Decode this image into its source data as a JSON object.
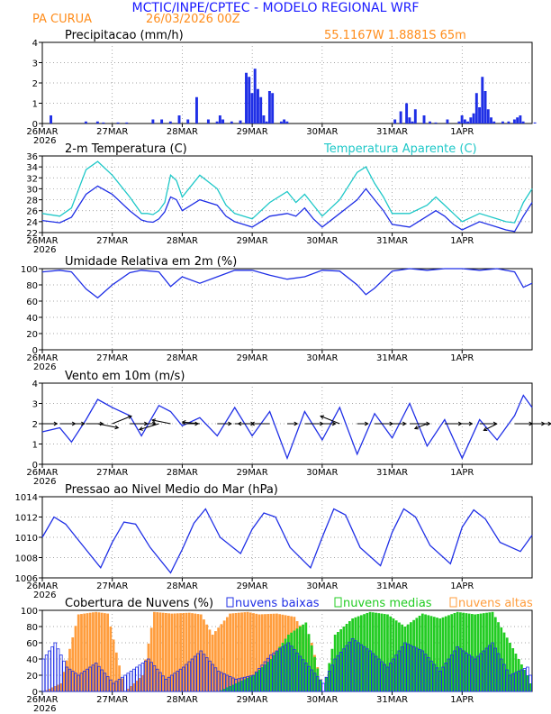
{
  "header": {
    "title": "MCTIC/INPE/CPTEC - MODELO REGIONAL WRF",
    "location": "PA CURUA",
    "run": "26/03/2026 00Z",
    "coords": "55.1167W 1.8881S 65m",
    "title_color": "#1a1aff",
    "sub_color": "#ff8c1a"
  },
  "days": [
    "26MAR",
    "27MAR",
    "28MAR",
    "29MAR",
    "30MAR",
    "31MAR",
    "1APR"
  ],
  "year_label": "2026",
  "colors": {
    "blue": "#1f2fe6",
    "cyan": "#1fc8c8",
    "green": "#22cc22",
    "orange": "#ff9d3d",
    "grid": "#888888"
  },
  "chart_data": [
    {
      "type": "bar",
      "id": "precip",
      "title": "Precipitacao (mm/h)",
      "ylim": [
        0,
        4
      ],
      "yticks": [
        "0",
        "1",
        "2",
        "3",
        "4"
      ],
      "x_hours": [
        3,
        15,
        19,
        21,
        26,
        29,
        38,
        41,
        44,
        47,
        50,
        53,
        57,
        60,
        61,
        62,
        65,
        68,
        70,
        71,
        72,
        73,
        74,
        75,
        76,
        77,
        78,
        79,
        82,
        83,
        84,
        121,
        123,
        125,
        126,
        127,
        128,
        131,
        133,
        135,
        139,
        143,
        144,
        145,
        146,
        147,
        148,
        149,
        150,
        151,
        152,
        153,
        154,
        155,
        158,
        160,
        162,
        163,
        164,
        165,
        169
      ],
      "values": [
        0.4,
        0.1,
        0.1,
        0.05,
        0.05,
        0.05,
        0.2,
        0.2,
        0.1,
        0.4,
        0.2,
        1.3,
        0.2,
        0.1,
        0.4,
        0.2,
        0.1,
        0.15,
        2.5,
        2.3,
        1.5,
        2.7,
        1.7,
        1.3,
        0.4,
        0.1,
        1.6,
        1.5,
        0.1,
        0.2,
        0.1,
        0.2,
        0.6,
        1.0,
        0.3,
        0.1,
        0.7,
        0.4,
        0.1,
        0.05,
        0.2,
        0.1,
        0.4,
        0.2,
        0.1,
        0.3,
        0.5,
        1.5,
        0.8,
        2.3,
        1.6,
        0.7,
        0.3,
        0.1,
        0.1,
        0.1,
        0.2,
        0.3,
        0.4,
        0.1,
        0.05
      ]
    },
    {
      "type": "line",
      "id": "temp",
      "title": "2-m Temperatura (C)",
      "legend": "Temperatura Aparente (C)",
      "ylim": [
        22,
        36
      ],
      "yticks": [
        "22",
        "24",
        "26",
        "28",
        "30",
        "32",
        "34",
        "36"
      ],
      "series": [
        {
          "name": "Temperatura",
          "x": [
            0,
            6,
            10,
            15,
            19,
            24,
            30,
            34,
            36,
            38,
            40,
            42,
            44,
            46,
            48,
            54,
            60,
            63,
            66,
            69,
            72,
            78,
            84,
            87,
            90,
            93,
            96,
            102,
            108,
            111,
            114,
            117,
            120,
            126,
            132,
            135,
            138,
            141,
            144,
            150,
            156,
            159,
            162,
            165,
            168
          ],
          "values": [
            24.2,
            23.8,
            24.8,
            29.0,
            30.5,
            29.0,
            26.0,
            24.3,
            24.0,
            23.9,
            24.5,
            25.8,
            28.5,
            28.0,
            26.0,
            28.0,
            27.0,
            25.0,
            24.0,
            23.5,
            23.0,
            25.0,
            25.5,
            25.0,
            26.5,
            24.5,
            23.0,
            25.5,
            28.0,
            30.0,
            28.0,
            26.0,
            23.5,
            23.0,
            25.0,
            26.0,
            25.0,
            23.5,
            22.5,
            24.0,
            23.0,
            22.5,
            22.2,
            25.0,
            27.5
          ]
        },
        {
          "name": "Temperatura Aparente",
          "x": [
            0,
            6,
            10,
            15,
            19,
            24,
            30,
            34,
            36,
            38,
            40,
            42,
            44,
            46,
            48,
            54,
            60,
            63,
            66,
            69,
            72,
            78,
            84,
            87,
            90,
            93,
            96,
            102,
            108,
            111,
            114,
            117,
            120,
            126,
            132,
            135,
            138,
            141,
            144,
            150,
            156,
            159,
            162,
            165,
            168
          ],
          "values": [
            25.5,
            25.0,
            26.5,
            33.5,
            35.0,
            32.5,
            28.5,
            25.5,
            25.5,
            25.3,
            26.0,
            27.5,
            32.5,
            31.5,
            28.5,
            32.5,
            30.0,
            27.0,
            25.5,
            25.0,
            24.5,
            27.5,
            29.5,
            27.5,
            29.0,
            27.0,
            25.0,
            28.0,
            33.0,
            34.0,
            31.0,
            28.5,
            25.5,
            25.5,
            27.0,
            28.5,
            27.0,
            25.5,
            24.0,
            25.5,
            24.5,
            24.0,
            23.8,
            27.5,
            30.0
          ]
        }
      ]
    },
    {
      "type": "line",
      "id": "humidity",
      "title": "Umidade Relativa em 2m (%)",
      "ylim": [
        0,
        100
      ],
      "yticks": [
        "0",
        "20",
        "40",
        "60",
        "80",
        "100"
      ],
      "series": [
        {
          "name": "Umidade",
          "x": [
            0,
            6,
            10,
            15,
            19,
            24,
            30,
            34,
            40,
            44,
            48,
            54,
            60,
            66,
            72,
            78,
            84,
            90,
            96,
            102,
            108,
            111,
            114,
            120,
            126,
            132,
            138,
            144,
            150,
            156,
            162,
            165,
            168
          ],
          "values": [
            96,
            98,
            96,
            75,
            64,
            80,
            95,
            98,
            96,
            78,
            90,
            82,
            90,
            98,
            98,
            92,
            87,
            90,
            98,
            97,
            80,
            68,
            76,
            97,
            100,
            98,
            100,
            100,
            98,
            100,
            96,
            77,
            82
          ]
        }
      ]
    },
    {
      "type": "line",
      "id": "wind",
      "title": "Vento em 10m (m/s)",
      "ylim": [
        0,
        4
      ],
      "yticks": [
        "0",
        "1",
        "2",
        "3",
        "4"
      ],
      "series": [
        {
          "name": "Velocidade",
          "x": [
            0,
            6,
            10,
            15,
            19,
            24,
            30,
            34,
            40,
            44,
            48,
            54,
            60,
            66,
            72,
            78,
            84,
            90,
            96,
            102,
            108,
            114,
            120,
            126,
            132,
            138,
            144,
            150,
            156,
            162,
            165,
            168
          ],
          "values": [
            1.6,
            1.8,
            1.1,
            2.2,
            3.2,
            2.8,
            2.4,
            1.4,
            2.9,
            2.6,
            1.9,
            2.3,
            1.4,
            2.8,
            1.4,
            2.6,
            0.3,
            2.6,
            1.2,
            2.8,
            0.5,
            2.5,
            1.3,
            3.0,
            0.9,
            2.2,
            0.3,
            2.2,
            1.2,
            2.4,
            3.4,
            2.8
          ]
        }
      ],
      "arrow_direction": [
        1,
        1,
        1,
        1,
        0.8,
        0.6,
        1,
        1,
        -0.7,
        -0.8,
        1,
        -0.9,
        1,
        1,
        -1,
        -1,
        1,
        1,
        1,
        -0.6,
        1,
        1,
        1,
        1,
        -0.6,
        1,
        1,
        1,
        -0.5,
        1,
        1,
        1
      ]
    },
    {
      "type": "line",
      "id": "pressure",
      "title": "Pressao ao Nivel Medio do Mar (hPa)",
      "ylim": [
        1006,
        1014
      ],
      "yticks": [
        "1006",
        "1008",
        "1010",
        "1012",
        "1014"
      ],
      "series": [
        {
          "name": "Pressao",
          "x": [
            0,
            4,
            8,
            13,
            20,
            24,
            28,
            32,
            37,
            44,
            48,
            52,
            56,
            61,
            68,
            72,
            76,
            80,
            85,
            92,
            96,
            100,
            104,
            109,
            116,
            120,
            124,
            128,
            133,
            140,
            144,
            148,
            152,
            157,
            164,
            168
          ],
          "values": [
            1010.0,
            1012.0,
            1011.3,
            1009.5,
            1007.0,
            1009.5,
            1011.5,
            1011.3,
            1009.0,
            1006.5,
            1008.8,
            1011.4,
            1012.8,
            1010.0,
            1008.4,
            1010.8,
            1012.4,
            1012.0,
            1009.0,
            1007.0,
            1010.0,
            1012.8,
            1012.2,
            1009.0,
            1007.2,
            1010.5,
            1012.8,
            1012.0,
            1009.2,
            1007.4,
            1011.0,
            1012.7,
            1011.8,
            1009.5,
            1008.6,
            1010.2
          ]
        }
      ]
    },
    {
      "type": "bar",
      "id": "clouds",
      "title": "Cobertura de Nuvens (%)",
      "ylim": [
        0,
        100
      ],
      "yticks": [
        "0",
        "20",
        "40",
        "60",
        "80",
        "100"
      ],
      "legend": [
        "nuvens baixas",
        "nuvens medias",
        "nuvens altas"
      ],
      "series": [
        {
          "name": "nuvens altas",
          "x": [
            0,
            6,
            12,
            18,
            22,
            28,
            34,
            38,
            44,
            50,
            54,
            58,
            64,
            70,
            74,
            80,
            86,
            92,
            96,
            100,
            106,
            112,
            118,
            124,
            130,
            136,
            142,
            148,
            154,
            160,
            166,
            168
          ],
          "values": [
            0,
            10,
            95,
            98,
            96,
            0,
            20,
            98,
            96,
            97,
            95,
            70,
            96,
            98,
            95,
            96,
            92,
            60,
            0,
            0,
            0,
            0,
            0,
            0,
            0,
            0,
            0,
            0,
            0,
            0,
            0,
            0
          ]
        },
        {
          "name": "nuvens medias",
          "x": [
            0,
            6,
            12,
            18,
            24,
            30,
            36,
            42,
            48,
            54,
            60,
            66,
            72,
            78,
            84,
            90,
            96,
            100,
            106,
            112,
            118,
            124,
            130,
            136,
            142,
            148,
            154,
            160,
            166,
            168
          ],
          "values": [
            0,
            0,
            0,
            0,
            0,
            0,
            0,
            0,
            0,
            0,
            0,
            10,
            20,
            40,
            70,
            85,
            0,
            70,
            90,
            98,
            95,
            80,
            96,
            90,
            98,
            95,
            98,
            60,
            20,
            0
          ]
        },
        {
          "name": "nuvens baixas",
          "x": [
            0,
            4,
            8,
            12,
            18,
            24,
            30,
            36,
            42,
            48,
            54,
            60,
            66,
            72,
            78,
            84,
            90,
            96,
            100,
            106,
            112,
            118,
            124,
            130,
            136,
            142,
            148,
            154,
            160,
            166,
            168
          ],
          "values": [
            40,
            60,
            30,
            20,
            35,
            10,
            25,
            40,
            15,
            30,
            50,
            25,
            15,
            20,
            45,
            60,
            35,
            10,
            40,
            65,
            50,
            30,
            60,
            50,
            25,
            55,
            40,
            60,
            20,
            30,
            10
          ]
        }
      ]
    }
  ]
}
